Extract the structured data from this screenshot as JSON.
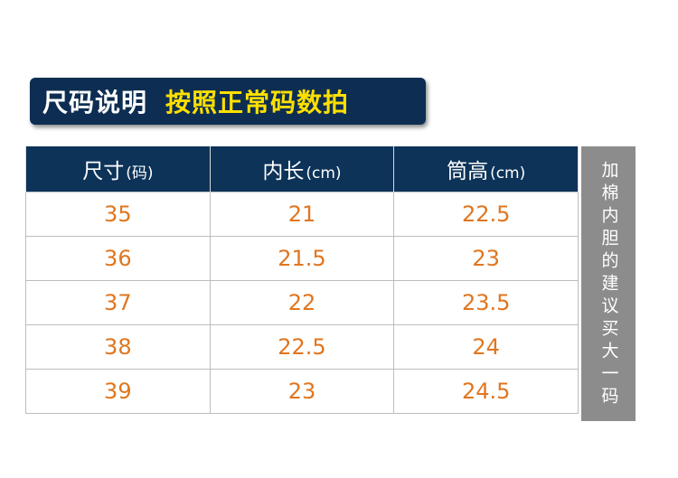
{
  "banner": {
    "title": "尺码说明",
    "subtitle": "按照正常码数拍"
  },
  "table": {
    "headers": [
      {
        "label": "尺寸",
        "unit": "(码)"
      },
      {
        "label": "内长",
        "unit": "(cm)"
      },
      {
        "label": "筒高",
        "unit": "(cm)"
      }
    ],
    "rows": [
      [
        "35",
        "21",
        "22.5"
      ],
      [
        "36",
        "21.5",
        "23"
      ],
      [
        "37",
        "22",
        "23.5"
      ],
      [
        "38",
        "22.5",
        "24"
      ],
      [
        "39",
        "23",
        "24.5"
      ]
    ]
  },
  "side_note": "加棉内胆的建议买大一码",
  "colors": {
    "header_bg": "#0d3359",
    "banner_bg": "#0d2e52",
    "subtitle": "#ffe000",
    "value_text": "#e0761f",
    "side_note_bg": "#8c8c8c"
  }
}
